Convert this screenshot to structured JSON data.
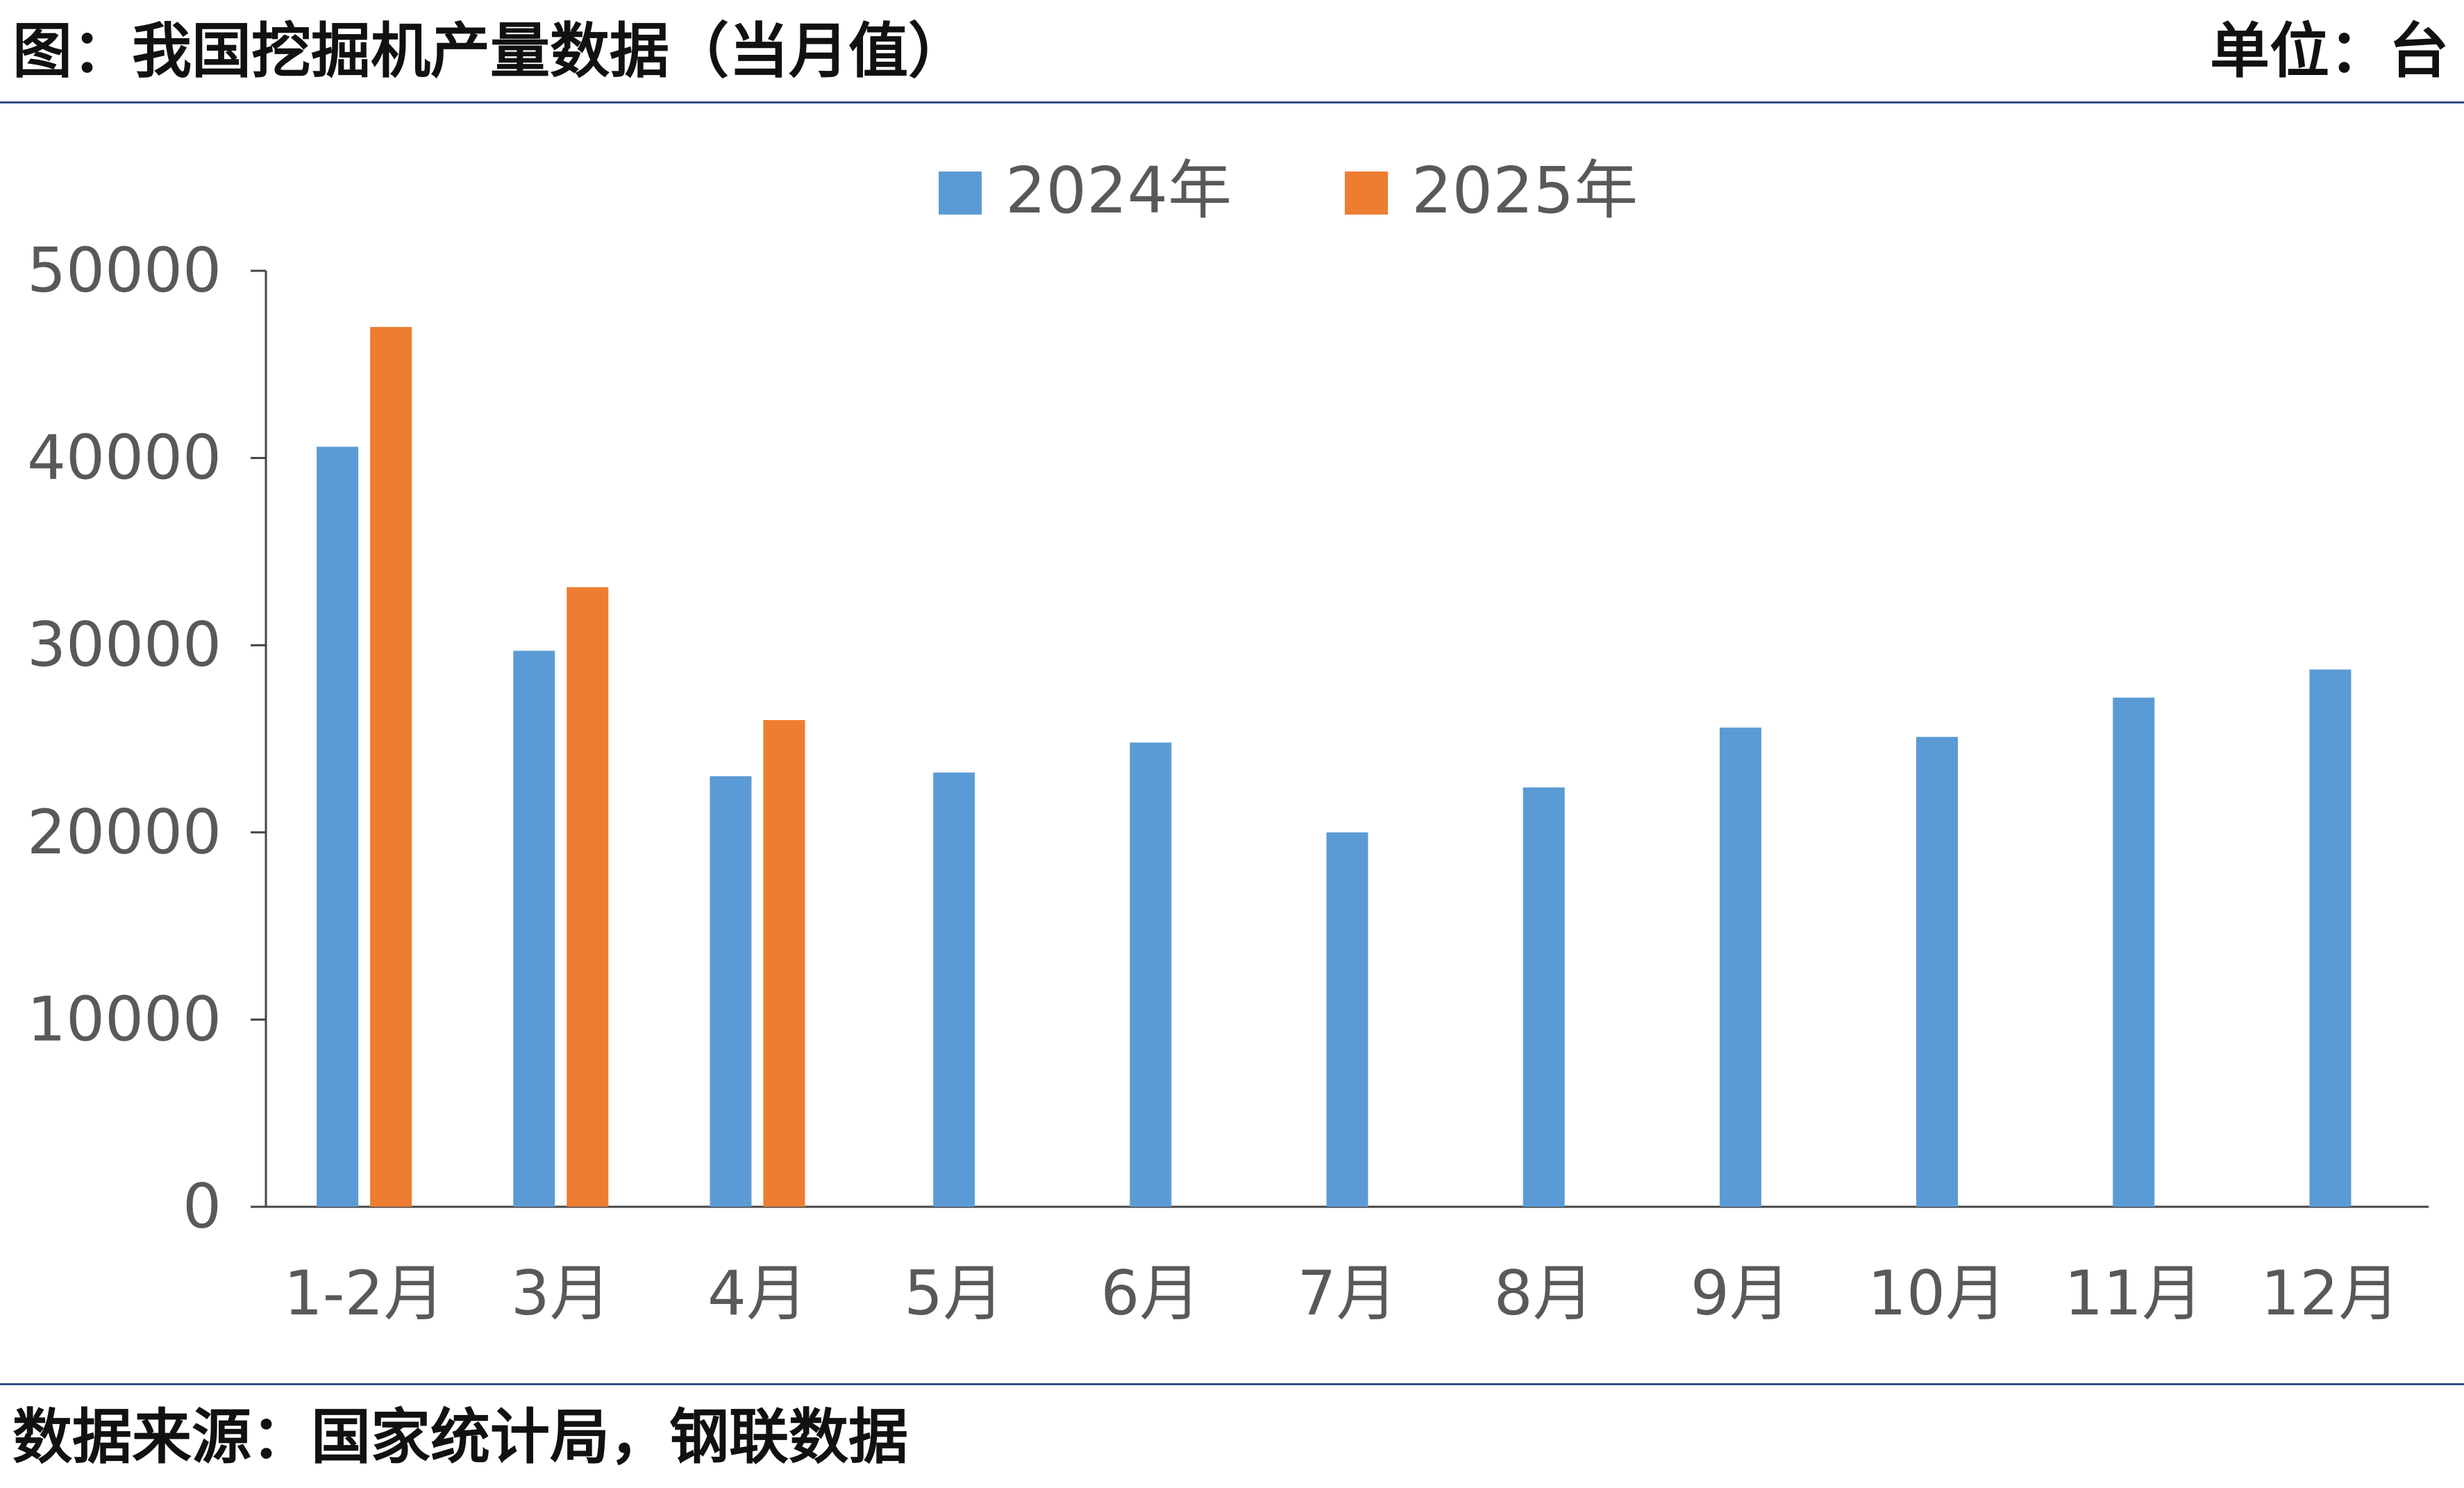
{
  "header": {
    "title": "图：我国挖掘机产量数据（当月值）",
    "unit": "单位：台"
  },
  "footer": {
    "source": "数据来源：国家统计局，钢联数据"
  },
  "colors": {
    "series_2024": "#5b9bd5",
    "series_2025": "#ed7d31",
    "axis": "#444444",
    "tick_text": "#595959",
    "rule": "#2f4f86"
  },
  "chart_data": {
    "type": "bar",
    "categories": [
      "1-2月",
      "3月",
      "4月",
      "5月",
      "6月",
      "7月",
      "8月",
      "9月",
      "10月",
      "11月",
      "12月"
    ],
    "series": [
      {
        "name": "2024年",
        "values": [
          40600,
          29700,
          23000,
          23200,
          24800,
          20000,
          22400,
          25600,
          25100,
          27200,
          28700
        ]
      },
      {
        "name": "2025年",
        "values": [
          47000,
          33100,
          26000,
          null,
          null,
          null,
          null,
          null,
          null,
          null,
          null
        ]
      }
    ],
    "ylim": [
      0,
      50000
    ],
    "yticks": [
      "0",
      "10000",
      "20000",
      "30000",
      "40000",
      "50000"
    ],
    "legend_position": "top-center",
    "grid": false
  }
}
